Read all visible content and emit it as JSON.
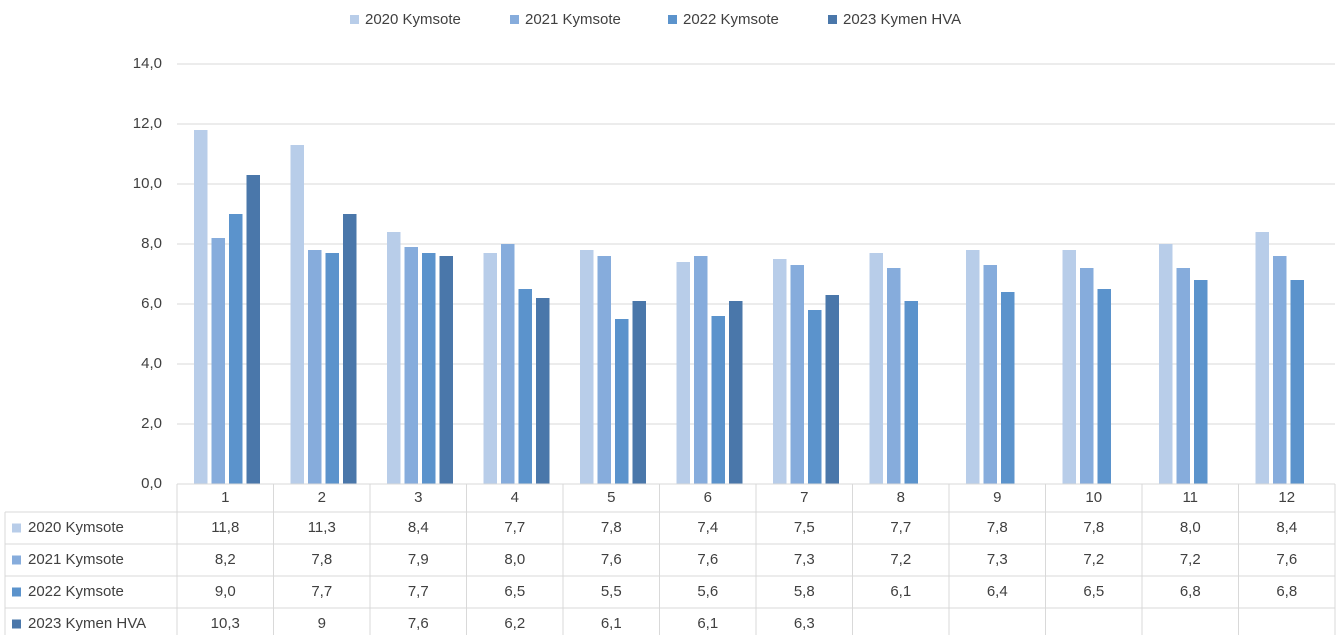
{
  "chart_data": {
    "type": "bar",
    "categories": [
      "1",
      "2",
      "3",
      "4",
      "5",
      "6",
      "7",
      "8",
      "9",
      "10",
      "11",
      "12"
    ],
    "series": [
      {
        "name": "2020 Kymsote",
        "color": "#b8cde9",
        "values": [
          11.8,
          11.3,
          8.4,
          7.7,
          7.8,
          7.4,
          7.5,
          7.7,
          7.8,
          7.8,
          8.0,
          8.4
        ],
        "value_labels": [
          "11,8",
          "11,3",
          "8,4",
          "7,7",
          "7,8",
          "7,4",
          "7,5",
          "7,7",
          "7,8",
          "7,8",
          "8,0",
          "8,4"
        ]
      },
      {
        "name": "2021 Kymsote",
        "color": "#86acdc",
        "values": [
          8.2,
          7.8,
          7.9,
          8.0,
          7.6,
          7.6,
          7.3,
          7.2,
          7.3,
          7.2,
          7.2,
          7.6
        ],
        "value_labels": [
          "8,2",
          "7,8",
          "7,9",
          "8,0",
          "7,6",
          "7,6",
          "7,3",
          "7,2",
          "7,3",
          "7,2",
          "7,2",
          "7,6"
        ]
      },
      {
        "name": "2022 Kymsote",
        "color": "#5b93cc",
        "values": [
          9.0,
          7.7,
          7.7,
          6.5,
          5.5,
          5.6,
          5.8,
          6.1,
          6.4,
          6.5,
          6.8,
          6.8
        ],
        "value_labels": [
          "9,0",
          "7,7",
          "7,7",
          "6,5",
          "5,5",
          "5,6",
          "5,8",
          "6,1",
          "6,4",
          "6,5",
          "6,8",
          "6,8"
        ]
      },
      {
        "name": "2023 Kymen HVA",
        "color": "#4a77aa",
        "values": [
          10.3,
          9,
          7.6,
          6.2,
          6.1,
          6.1,
          6.3,
          null,
          null,
          null,
          null,
          null
        ],
        "value_labels": [
          "10,3",
          "9",
          "7,6",
          "6,2",
          "6,1",
          "6,1",
          "6,3",
          null,
          null,
          null,
          null,
          null
        ]
      }
    ],
    "ylim": [
      0,
      14
    ],
    "yticks": [
      {
        "value": 0,
        "label": "0,0"
      },
      {
        "value": 2,
        "label": "2,0"
      },
      {
        "value": 4,
        "label": "4,0"
      },
      {
        "value": 6,
        "label": "6,0"
      },
      {
        "value": 8,
        "label": "8,0"
      },
      {
        "value": 10,
        "label": "10,0"
      },
      {
        "value": 12,
        "label": "12,0"
      },
      {
        "value": 14,
        "label": "14,0"
      }
    ],
    "grid": true,
    "legend": "top"
  }
}
